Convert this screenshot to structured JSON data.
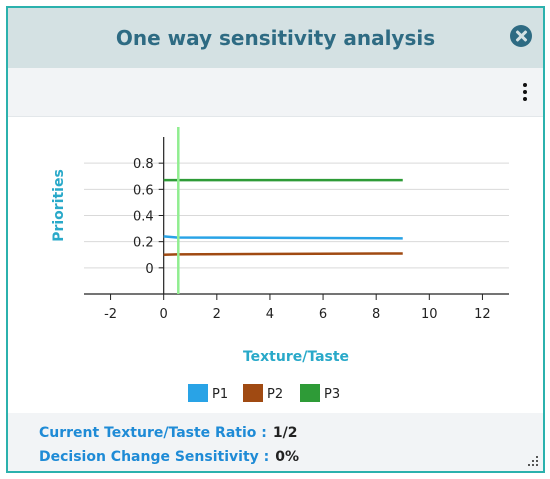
{
  "dialog": {
    "title": "One way sensitivity analysis",
    "close_icon": "close-icon",
    "menu_icon": "kebab-menu-icon"
  },
  "colors": {
    "border": "#2bb1ad",
    "title": "#2e6b83",
    "label_blue": "#1f8bd6",
    "axis_title": "#29a9c9",
    "sensitivity_line": "#90ee90"
  },
  "chart_data": {
    "type": "line",
    "xlabel": "Texture/Taste",
    "ylabel": "Priorities",
    "xlim": [
      -3,
      13
    ],
    "ylim": [
      -0.2,
      1.0
    ],
    "x_ticks": [
      -2,
      0,
      2,
      4,
      6,
      8,
      10,
      12
    ],
    "y_ticks": [
      0,
      0.2,
      0.4,
      0.6,
      0.8
    ],
    "y_tick_labels": [
      "0",
      "0.2",
      "0.4",
      "0.6",
      "0.8"
    ],
    "grid": true,
    "legend_position": "bottom",
    "vertical_line_x": 0.55,
    "series": [
      {
        "name": "P1",
        "color": "#29a3e6",
        "x": [
          0,
          0.5,
          9
        ],
        "y": [
          0.24,
          0.232,
          0.225
        ]
      },
      {
        "name": "P2",
        "color": "#a04a12",
        "x": [
          0,
          0.5,
          9
        ],
        "y": [
          0.1,
          0.103,
          0.11
        ]
      },
      {
        "name": "P3",
        "color": "#2e9b37",
        "x": [
          0,
          9
        ],
        "y": [
          0.67,
          0.67
        ]
      }
    ]
  },
  "footer": {
    "ratio_label": "Current Texture/Taste Ratio :",
    "ratio_value": "1/2",
    "sensitivity_label": "Decision Change Sensitivity :",
    "sensitivity_value": "0%"
  }
}
